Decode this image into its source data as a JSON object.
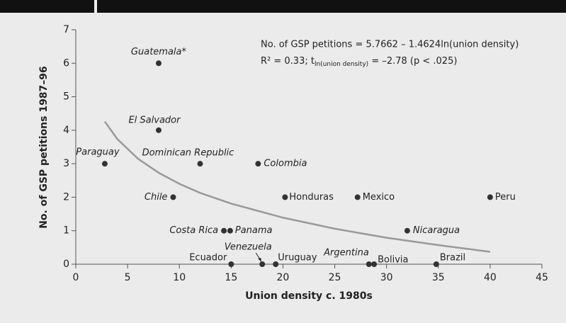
{
  "chart_data": {
    "type": "scatter",
    "x_label": "Union density c. 1980s",
    "y_label": "No. of GSP petitions 1987–96",
    "annotations": [
      "No. of GSP petitions = 5.7662 – 1.4624ln(union density)",
      "R² = 0.33; t",
      "ln(union density)",
      " = –2.78 (p < .025)"
    ],
    "xlim": [
      0,
      45
    ],
    "ylim": [
      0,
      7
    ],
    "xticks": [
      0,
      5,
      10,
      15,
      20,
      25,
      30,
      35,
      40,
      45
    ],
    "yticks": [
      0,
      1,
      2,
      3,
      4,
      5,
      6,
      7
    ],
    "series": [
      {
        "color": "#333333",
        "labels": [
          "Guatemala*",
          "El Salvador",
          "Paraguay",
          "Dominican Republic",
          "Colombia",
          "Chile",
          "Honduras",
          "Mexico",
          "Peru",
          "Costa Rica",
          "Panama",
          "Nicaragua",
          "Ecuador",
          "Venezuela",
          "Uruguay",
          "Argentina",
          "Bolivia",
          "Brazil"
        ],
        "italic": [
          true,
          true,
          true,
          true,
          true,
          true,
          false,
          false,
          false,
          true,
          true,
          true,
          false,
          true,
          false,
          true,
          false,
          false
        ],
        "x": [
          8,
          8,
          2.8,
          12,
          17.6,
          9.4,
          20.2,
          27.2,
          40,
          14.3,
          14.9,
          32,
          15,
          18,
          19.3,
          28.3,
          28.8,
          34.8
        ],
        "values": [
          6,
          4,
          3,
          3,
          3,
          2,
          2,
          2,
          2,
          1,
          1,
          1,
          0,
          0,
          0,
          0,
          0,
          0
        ]
      },
      {
        "color": "#999999",
        "x": [
          2.8,
          4,
          6,
          8,
          10,
          12,
          15,
          20,
          25,
          30,
          35,
          40
        ],
        "values": [
          4.26,
          3.74,
          3.15,
          2.73,
          2.4,
          2.13,
          1.81,
          1.39,
          1.06,
          0.79,
          0.57,
          0.37
        ]
      }
    ]
  }
}
